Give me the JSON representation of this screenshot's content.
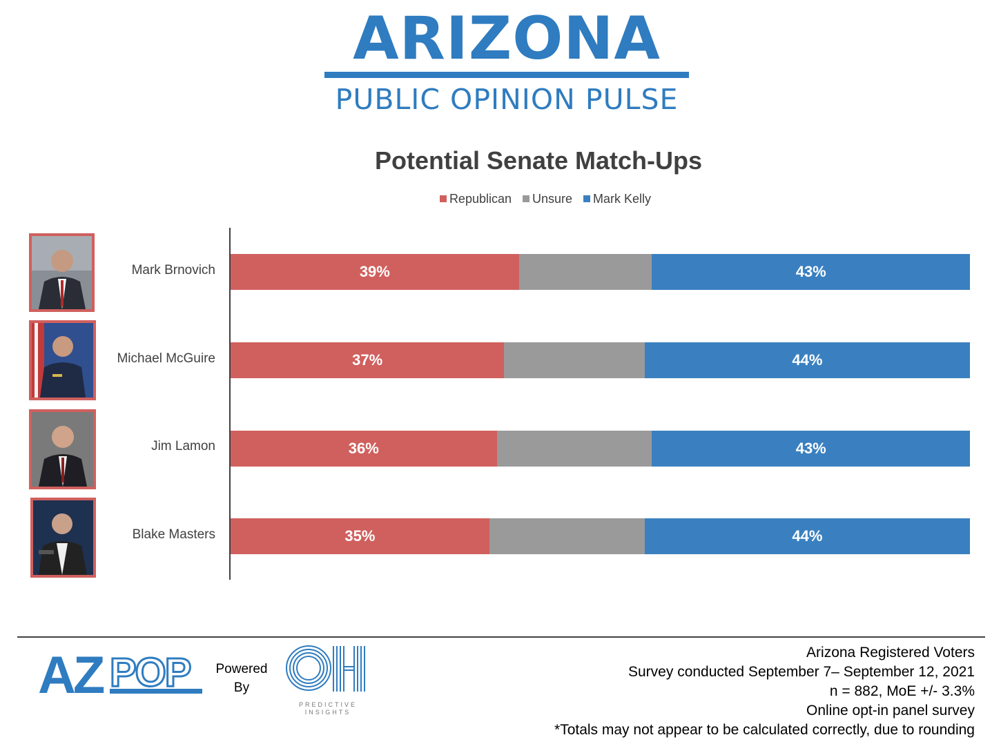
{
  "header": {
    "title": "ARIZONA",
    "subtitle": "PUBLIC OPINION PULSE"
  },
  "colors": {
    "republican": "#d0605e",
    "unsure": "#9a9a9a",
    "kelly": "#3a80c0",
    "brand": "#2f7cc0"
  },
  "chart_data": {
    "type": "bar",
    "orientation": "horizontal-stacked-100",
    "title": "Potential Senate Match-Ups",
    "legend_position": "top",
    "grid": false,
    "categories": [
      "Mark Brnovich",
      "Michael McGuire",
      "Jim Lamon",
      "Blake Masters"
    ],
    "series": [
      {
        "name": "Republican",
        "values": [
          39,
          37,
          36,
          35
        ],
        "labels": [
          "39%",
          "37%",
          "36%",
          "35%"
        ]
      },
      {
        "name": "Unsure",
        "values": [
          18,
          19,
          21,
          21
        ],
        "labels": [
          "",
          "",
          "",
          ""
        ]
      },
      {
        "name": "Mark Kelly",
        "values": [
          43,
          44,
          43,
          44
        ],
        "labels": [
          "43%",
          "44%",
          "43%",
          "44%"
        ]
      }
    ],
    "xlim": [
      0,
      100
    ]
  },
  "footer": {
    "logo_text": "AZPOP",
    "powered_line1": "Powered",
    "powered_line2": "By",
    "partner_caption": "PREDICTIVE INSIGHTS",
    "notes": [
      "Arizona Registered Voters",
      "Survey conducted September 7–  September 12, 2021",
      "n = 882, MoE +/- 3.3%",
      "Online opt-in panel survey",
      "*Totals may not appear to be calculated correctly, due to rounding"
    ]
  }
}
